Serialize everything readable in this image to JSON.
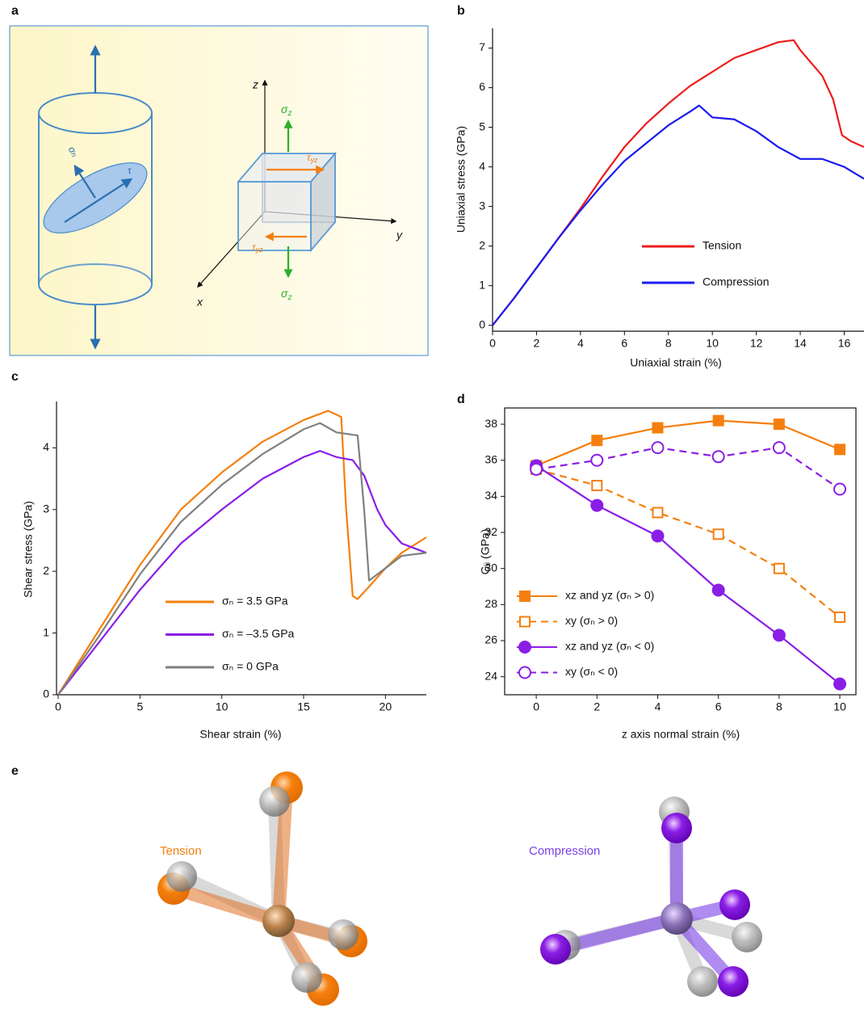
{
  "panel_labels": [
    "a",
    "b",
    "c",
    "d",
    "e"
  ],
  "diagram": {
    "labels": [
      {
        "base": "z"
      },
      {
        "base": "y"
      },
      {
        "base": "x"
      },
      {
        "base": "σ",
        "sub": "n"
      },
      {
        "base": "τ"
      },
      {
        "base": "σ",
        "sub": "z"
      },
      {
        "base": "τ",
        "sub": "yz"
      },
      {
        "base": "τ",
        "sub": "yz"
      },
      {
        "base": "σ",
        "sub": "z"
      }
    ]
  },
  "molecules": {
    "labels": [
      "Tension",
      "Compression"
    ]
  },
  "chart_data": [
    {
      "type": "line",
      "x_label": "Uniaxial strain (%)",
      "y_label": "Uniaxial stress (GPa)",
      "xlim": [
        0,
        16.9
      ],
      "ylim": [
        -0.15,
        7.5
      ],
      "xticks": [
        0,
        2,
        4,
        6,
        8,
        10,
        12,
        14,
        16
      ],
      "yticks": [
        0,
        1,
        2,
        3,
        4,
        5,
        6,
        7
      ],
      "frame": false,
      "series": [
        {
          "name": "Tension",
          "color": "#ee1c1c",
          "x": [
            0,
            1,
            2,
            3,
            4,
            5,
            6,
            7,
            8,
            9,
            10,
            11,
            12,
            13,
            13.7,
            14,
            15,
            15.5,
            15.9,
            16.3,
            16.9
          ],
          "values": [
            0,
            0.7,
            1.45,
            2.2,
            2.95,
            3.75,
            4.5,
            5.1,
            5.6,
            6.05,
            6.4,
            6.75,
            6.95,
            7.15,
            7.2,
            6.95,
            6.3,
            5.7,
            4.8,
            4.65,
            4.5
          ]
        },
        {
          "name": "Compression",
          "color": "#1c1cee",
          "x": [
            0,
            1,
            2,
            3,
            4,
            5,
            6,
            7,
            8,
            9,
            9.4,
            10,
            11,
            12,
            13,
            14,
            15,
            16,
            16.9
          ],
          "values": [
            0,
            0.7,
            1.45,
            2.2,
            2.9,
            3.55,
            4.15,
            4.6,
            5.05,
            5.4,
            5.55,
            5.25,
            5.2,
            4.9,
            4.5,
            4.2,
            4.2,
            4.0,
            3.7
          ]
        }
      ]
    },
    {
      "type": "line",
      "x_label": "Shear strain (%)",
      "y_label": "Shear stress (GPa)",
      "xlim": [
        -0.1,
        22.5
      ],
      "ylim": [
        0,
        4.75
      ],
      "xticks": [
        0,
        5,
        10,
        15,
        20
      ],
      "yticks": [
        0,
        1,
        2,
        3,
        4
      ],
      "frame": false,
      "series": [
        {
          "name": "σₙ =  3.5 GPa",
          "color": "#f57f0e",
          "x": [
            0,
            2.5,
            5,
            7.5,
            10,
            12.5,
            15,
            16.5,
            17.3,
            17.6,
            18,
            18.3,
            19,
            20,
            21,
            22.5
          ],
          "values": [
            0,
            1.05,
            2.1,
            3.0,
            3.6,
            4.1,
            4.45,
            4.6,
            4.5,
            3.0,
            1.6,
            1.55,
            1.75,
            2.05,
            2.3,
            2.55
          ]
        },
        {
          "name": "σₙ = –3.5 GPa",
          "color": "#8a1ee6",
          "x": [
            0,
            2.5,
            5,
            7.5,
            10,
            12.5,
            15,
            16,
            17,
            18,
            18.7,
            19.5,
            20,
            21,
            22,
            22.5
          ],
          "values": [
            0,
            0.85,
            1.7,
            2.45,
            3.0,
            3.5,
            3.85,
            3.95,
            3.85,
            3.8,
            3.55,
            3.0,
            2.75,
            2.45,
            2.35,
            2.3
          ]
        },
        {
          "name": "σₙ =  0 GPa",
          "color": "#808080",
          "x": [
            0,
            2.5,
            5,
            7.5,
            10,
            12.5,
            15,
            16,
            17,
            18.3,
            18.7,
            19,
            20,
            21,
            22.5
          ],
          "values": [
            0,
            0.95,
            1.95,
            2.8,
            3.4,
            3.9,
            4.3,
            4.4,
            4.25,
            4.2,
            3.0,
            1.85,
            2.05,
            2.25,
            2.3
          ]
        }
      ]
    },
    {
      "type": "line",
      "x_label": "z axis normal strain (%)",
      "y_label": "Gᵢⱼ (GPa)",
      "xlim": [
        -1.04,
        10.53
      ],
      "ylim": [
        23.0,
        38.9
      ],
      "xticks": [
        0,
        2,
        4,
        6,
        8,
        10
      ],
      "yticks": [
        24,
        26,
        28,
        30,
        32,
        34,
        36,
        38
      ],
      "frame": true,
      "series": [
        {
          "name": "xz and yz (σₙ > 0)",
          "color": "#f57f0e",
          "marker": "square",
          "filled": true,
          "linestyle": "solid",
          "x": [
            0,
            2,
            4,
            6,
            8,
            10
          ],
          "values": [
            35.7,
            37.1,
            37.8,
            38.2,
            38.0,
            36.6
          ]
        },
        {
          "name": "xy (σₙ > 0)",
          "color": "#f57f0e",
          "marker": "square",
          "filled": false,
          "linestyle": "dashed",
          "x": [
            0,
            2,
            4,
            6,
            8,
            10
          ],
          "values": [
            35.5,
            34.6,
            33.1,
            31.9,
            30.0,
            27.3
          ]
        },
        {
          "name": "xz and yz (σₙ < 0)",
          "color": "#8a1ee6",
          "marker": "circle",
          "filled": true,
          "linestyle": "solid",
          "x": [
            0,
            2,
            4,
            6,
            8,
            10
          ],
          "values": [
            35.7,
            33.5,
            31.8,
            28.8,
            26.3,
            23.6
          ]
        },
        {
          "name": "xy (σₙ < 0)",
          "color": "#8a1ee6",
          "marker": "circle",
          "filled": false,
          "linestyle": "dashed",
          "x": [
            0,
            2,
            4,
            6,
            8,
            10
          ],
          "values": [
            35.5,
            36.0,
            36.7,
            36.2,
            36.7,
            34.4
          ]
        }
      ]
    }
  ]
}
